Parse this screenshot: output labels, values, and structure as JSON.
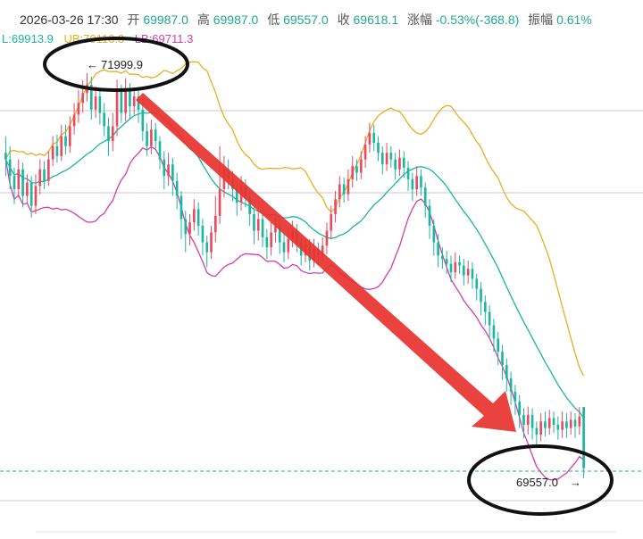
{
  "header": {
    "datetime": "2026-03-26 17:30",
    "open_label": "开",
    "open": "69987.0",
    "high_label": "高",
    "high": "69987.0",
    "low_label": "低",
    "low": "69557.0",
    "close_label": "收",
    "close": "69618.1",
    "change_label": "涨幅",
    "change": "-0.53%(-368.8)",
    "amplitude_label": "振幅",
    "amplitude": "0.61%"
  },
  "indicators": {
    "mid": "L:69913.9",
    "ub": "UB:70116.3",
    "lb": "LB:69711.3"
  },
  "colors": {
    "up": "#e84a5f",
    "down": "#19b6a0",
    "mid_line": "#19b6a0",
    "ub_line": "#e8b020",
    "lb_line": "#d23cb4",
    "arrow": "#e8322e"
  },
  "annotations": {
    "high_marker": "71999.9",
    "low_marker": "69557.0"
  },
  "chart_data": {
    "type": "candlestick",
    "indicator": "Bollinger Bands",
    "high": 71999.9,
    "low": 69557.0,
    "trend": "down",
    "candles": [
      [
        71520,
        71480,
        71620,
        71380
      ],
      [
        71480,
        71380,
        71560,
        71300
      ],
      [
        71380,
        71300,
        71430,
        71210
      ],
      [
        71300,
        71420,
        71480,
        71250
      ],
      [
        71420,
        71260,
        71460,
        71190
      ],
      [
        71260,
        71340,
        71390,
        71220
      ],
      [
        71340,
        71200,
        71380,
        71130
      ],
      [
        71200,
        71320,
        71390,
        71150
      ],
      [
        71320,
        71420,
        71480,
        71270
      ],
      [
        71420,
        71350,
        71470,
        71300
      ],
      [
        71350,
        71480,
        71530,
        71320
      ],
      [
        71480,
        71560,
        71620,
        71440
      ],
      [
        71560,
        71500,
        71630,
        71460
      ],
      [
        71500,
        71620,
        71690,
        71470
      ],
      [
        71620,
        71560,
        71690,
        71510
      ],
      [
        71560,
        71680,
        71740,
        71520
      ],
      [
        71680,
        71750,
        71820,
        71630
      ],
      [
        71750,
        71820,
        71900,
        71700
      ],
      [
        71820,
        71880,
        71960,
        71760
      ],
      [
        71880,
        71930,
        72000,
        71830
      ],
      [
        71930,
        71780,
        71980,
        71720
      ],
      [
        71780,
        71860,
        71920,
        71730
      ],
      [
        71860,
        71760,
        71900,
        71690
      ],
      [
        71760,
        71680,
        71820,
        71620
      ],
      [
        71680,
        71590,
        71730,
        71500
      ],
      [
        71590,
        71680,
        71760,
        71530
      ],
      [
        71680,
        71890,
        71960,
        71620
      ],
      [
        71890,
        71760,
        71930,
        71700
      ],
      [
        71760,
        71900,
        71970,
        71710
      ],
      [
        71900,
        71800,
        71940,
        71720
      ],
      [
        71800,
        71860,
        71910,
        71750
      ],
      [
        71860,
        71780,
        71900,
        71700
      ],
      [
        71780,
        71650,
        71820,
        71590
      ],
      [
        71650,
        71560,
        71700,
        71500
      ],
      [
        71560,
        71660,
        71720,
        71510
      ],
      [
        71660,
        71590,
        71700,
        71540
      ],
      [
        71590,
        71480,
        71620,
        71420
      ],
      [
        71480,
        71380,
        71530,
        71300
      ],
      [
        71380,
        71450,
        71520,
        71320
      ],
      [
        71450,
        71350,
        71490,
        71260
      ],
      [
        71350,
        71260,
        71400,
        71180
      ],
      [
        71260,
        71120,
        71290,
        71000
      ],
      [
        71120,
        71030,
        71170,
        70920
      ],
      [
        71030,
        71100,
        71150,
        70960
      ],
      [
        71100,
        71180,
        71240,
        71050
      ],
      [
        71180,
        71080,
        71220,
        71020
      ],
      [
        71080,
        70980,
        71120,
        70900
      ],
      [
        70980,
        70920,
        71020,
        70830
      ],
      [
        70920,
        71040,
        71080,
        70880
      ],
      [
        71040,
        71140,
        71260,
        70980
      ],
      [
        71140,
        71300,
        71560,
        71090
      ],
      [
        71300,
        71420,
        71500,
        71250
      ],
      [
        71420,
        71360,
        71480,
        71300
      ],
      [
        71360,
        71300,
        71410,
        71230
      ],
      [
        71300,
        71220,
        71350,
        71140
      ],
      [
        71220,
        71320,
        71380,
        71170
      ],
      [
        71320,
        71250,
        71360,
        71190
      ],
      [
        71250,
        71150,
        71290,
        71080
      ],
      [
        71150,
        71050,
        71190,
        70970
      ],
      [
        71050,
        71120,
        71170,
        70990
      ],
      [
        71120,
        71010,
        71150,
        70950
      ],
      [
        71010,
        70950,
        71060,
        70880
      ],
      [
        70950,
        71040,
        71100,
        70900
      ],
      [
        71040,
        71080,
        71130,
        70980
      ],
      [
        71080,
        70980,
        71120,
        70910
      ],
      [
        70980,
        70920,
        71030,
        70860
      ],
      [
        70920,
        71000,
        71060,
        70880
      ],
      [
        71000,
        71050,
        71110,
        70950
      ],
      [
        71050,
        70980,
        71090,
        70920
      ],
      [
        70980,
        70900,
        71020,
        70840
      ],
      [
        70900,
        70970,
        71010,
        70860
      ],
      [
        70970,
        70870,
        71000,
        70810
      ],
      [
        70870,
        70940,
        71000,
        70830
      ],
      [
        70940,
        70900,
        70980,
        70840
      ],
      [
        70900,
        70960,
        71010,
        70860
      ],
      [
        70960,
        71050,
        71100,
        70910
      ],
      [
        71050,
        71150,
        71200,
        71000
      ],
      [
        71150,
        71240,
        71290,
        71100
      ],
      [
        71240,
        71330,
        71380,
        71190
      ],
      [
        71330,
        71270,
        71370,
        71220
      ],
      [
        71270,
        71360,
        71420,
        71230
      ],
      [
        71360,
        71440,
        71500,
        71310
      ],
      [
        71440,
        71400,
        71480,
        71350
      ],
      [
        71400,
        71480,
        71530,
        71360
      ],
      [
        71480,
        71570,
        71620,
        71430
      ],
      [
        71570,
        71640,
        71700,
        71520
      ],
      [
        71640,
        71580,
        71690,
        71530
      ],
      [
        71580,
        71520,
        71620,
        71470
      ],
      [
        71520,
        71450,
        71560,
        71390
      ],
      [
        71450,
        71520,
        71580,
        71410
      ],
      [
        71520,
        71480,
        71560,
        71430
      ],
      [
        71480,
        71420,
        71520,
        71360
      ],
      [
        71420,
        71490,
        71540,
        71380
      ],
      [
        71490,
        71430,
        71530,
        71370
      ],
      [
        71430,
        71360,
        71470,
        71290
      ],
      [
        71360,
        71300,
        71400,
        71230
      ],
      [
        71300,
        71380,
        71440,
        71260
      ],
      [
        71380,
        71310,
        71420,
        71260
      ],
      [
        71310,
        71200,
        71340,
        71130
      ],
      [
        71200,
        71080,
        71240,
        71000
      ],
      [
        71080,
        70980,
        71120,
        70900
      ],
      [
        70980,
        70900,
        71030,
        70830
      ],
      [
        70900,
        70880,
        70950,
        70820
      ],
      [
        70880,
        70850,
        70930,
        70790
      ],
      [
        70850,
        70800,
        70900,
        70740
      ],
      [
        70800,
        70860,
        70920,
        70760
      ],
      [
        70860,
        70840,
        70900,
        70790
      ],
      [
        70840,
        70780,
        70880,
        70720
      ],
      [
        70780,
        70820,
        70870,
        70730
      ],
      [
        70820,
        70760,
        70860,
        70700
      ],
      [
        70760,
        70700,
        70790,
        70630
      ],
      [
        70700,
        70620,
        70740,
        70540
      ],
      [
        70620,
        70560,
        70660,
        70480
      ],
      [
        70560,
        70480,
        70600,
        70400
      ],
      [
        70480,
        70400,
        70520,
        70320
      ],
      [
        70400,
        70320,
        70440,
        70240
      ],
      [
        70320,
        70240,
        70360,
        70150
      ],
      [
        70240,
        70160,
        70280,
        70080
      ],
      [
        70160,
        70080,
        70200,
        70000
      ],
      [
        70080,
        70020,
        70120,
        69940
      ],
      [
        70020,
        69940,
        70060,
        69860
      ],
      [
        69940,
        69880,
        69980,
        69800
      ],
      [
        69880,
        69940,
        69990,
        69820
      ],
      [
        69940,
        69860,
        69980,
        69790
      ],
      [
        69860,
        69820,
        69900,
        69760
      ],
      [
        69820,
        69900,
        69950,
        69780
      ],
      [
        69900,
        69860,
        69960,
        69810
      ],
      [
        69860,
        69920,
        69970,
        69820
      ],
      [
        69920,
        69880,
        69960,
        69830
      ],
      [
        69880,
        69850,
        69930,
        69790
      ],
      [
        69850,
        69900,
        69960,
        69800
      ],
      [
        69900,
        69860,
        69950,
        69800
      ],
      [
        69860,
        69910,
        69960,
        69820
      ],
      [
        69910,
        69870,
        69950,
        69800
      ],
      [
        69870,
        69930,
        69987,
        69820
      ],
      [
        69987,
        69618.1,
        69987,
        69557
      ]
    ]
  }
}
